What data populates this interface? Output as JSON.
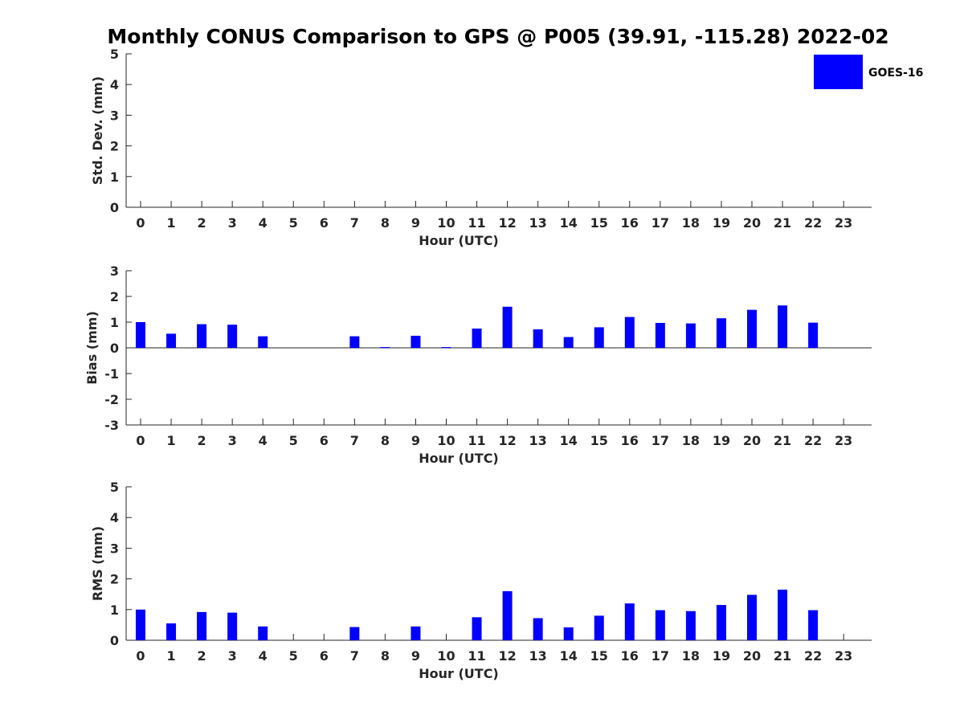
{
  "chart_data": {
    "title": "Monthly CONUS Comparison to GPS @ P005 (39.91, -115.28) 2022-02",
    "legend": {
      "label": "GOES-16",
      "color": "#0000ff",
      "placement": "top-right"
    },
    "panels": [
      {
        "type": "bar",
        "name": "std-dev",
        "xlabel": "Hour (UTC)",
        "ylabel": "Std. Dev. (mm)",
        "ylim": [
          0,
          5
        ],
        "yticks": [
          0,
          1,
          2,
          3,
          4,
          5
        ],
        "categories": [
          "0",
          "1",
          "2",
          "3",
          "4",
          "5",
          "6",
          "7",
          "8",
          "9",
          "10",
          "11",
          "12",
          "13",
          "14",
          "15",
          "16",
          "17",
          "18",
          "19",
          "20",
          "21",
          "22",
          "23"
        ],
        "values": [
          0,
          0,
          0,
          0,
          0,
          0,
          0,
          0,
          0,
          0,
          0,
          0,
          0,
          0,
          0,
          0,
          0,
          0,
          0,
          0,
          0,
          0,
          0,
          0
        ],
        "grid": false
      },
      {
        "type": "bar",
        "name": "bias",
        "xlabel": "Hour (UTC)",
        "ylabel": "Bias (mm)",
        "ylim": [
          -3,
          3
        ],
        "yticks": [
          -3,
          -2,
          -1,
          0,
          1,
          2,
          3
        ],
        "categories": [
          "0",
          "1",
          "2",
          "3",
          "4",
          "5",
          "6",
          "7",
          "8",
          "9",
          "10",
          "11",
          "12",
          "13",
          "14",
          "15",
          "16",
          "17",
          "18",
          "19",
          "20",
          "21",
          "22",
          "23"
        ],
        "values": [
          1.0,
          0.55,
          0.92,
          0.9,
          0.45,
          0,
          0,
          0.45,
          0.03,
          0.47,
          0.03,
          0.75,
          1.6,
          0.72,
          0.42,
          0.8,
          1.2,
          0.97,
          0.95,
          1.15,
          1.48,
          1.65,
          0.98,
          0
        ],
        "zero_line": true,
        "grid": false
      },
      {
        "type": "bar",
        "name": "rms",
        "xlabel": "Hour (UTC)",
        "ylabel": "RMS (mm)",
        "ylim": [
          0,
          5
        ],
        "yticks": [
          0,
          1,
          2,
          3,
          4,
          5
        ],
        "categories": [
          "0",
          "1",
          "2",
          "3",
          "4",
          "5",
          "6",
          "7",
          "8",
          "9",
          "10",
          "11",
          "12",
          "13",
          "14",
          "15",
          "16",
          "17",
          "18",
          "19",
          "20",
          "21",
          "22",
          "23"
        ],
        "values": [
          1.0,
          0.55,
          0.92,
          0.9,
          0.45,
          0,
          0,
          0.43,
          0,
          0.45,
          0,
          0.75,
          1.6,
          0.72,
          0.42,
          0.8,
          1.2,
          0.98,
          0.95,
          1.15,
          1.48,
          1.65,
          0.98,
          0
        ],
        "grid": false
      }
    ]
  }
}
